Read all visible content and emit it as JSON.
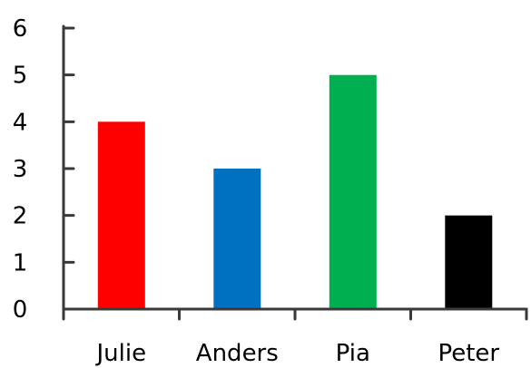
{
  "chart_data": {
    "type": "bar",
    "categories": [
      "Julie",
      "Anders",
      "Pia",
      "Peter"
    ],
    "values": [
      4,
      3,
      5,
      2
    ],
    "bar_colors": [
      "#ff0000",
      "#0070c0",
      "#00b050",
      "#000000"
    ],
    "axis_color": "#3a3a3a",
    "ylim": [
      0,
      6
    ],
    "yticks": [
      0,
      1,
      2,
      3,
      4,
      5,
      6
    ],
    "xlabel": "",
    "ylabel": "",
    "title": "",
    "grid": false,
    "legend": "none"
  }
}
